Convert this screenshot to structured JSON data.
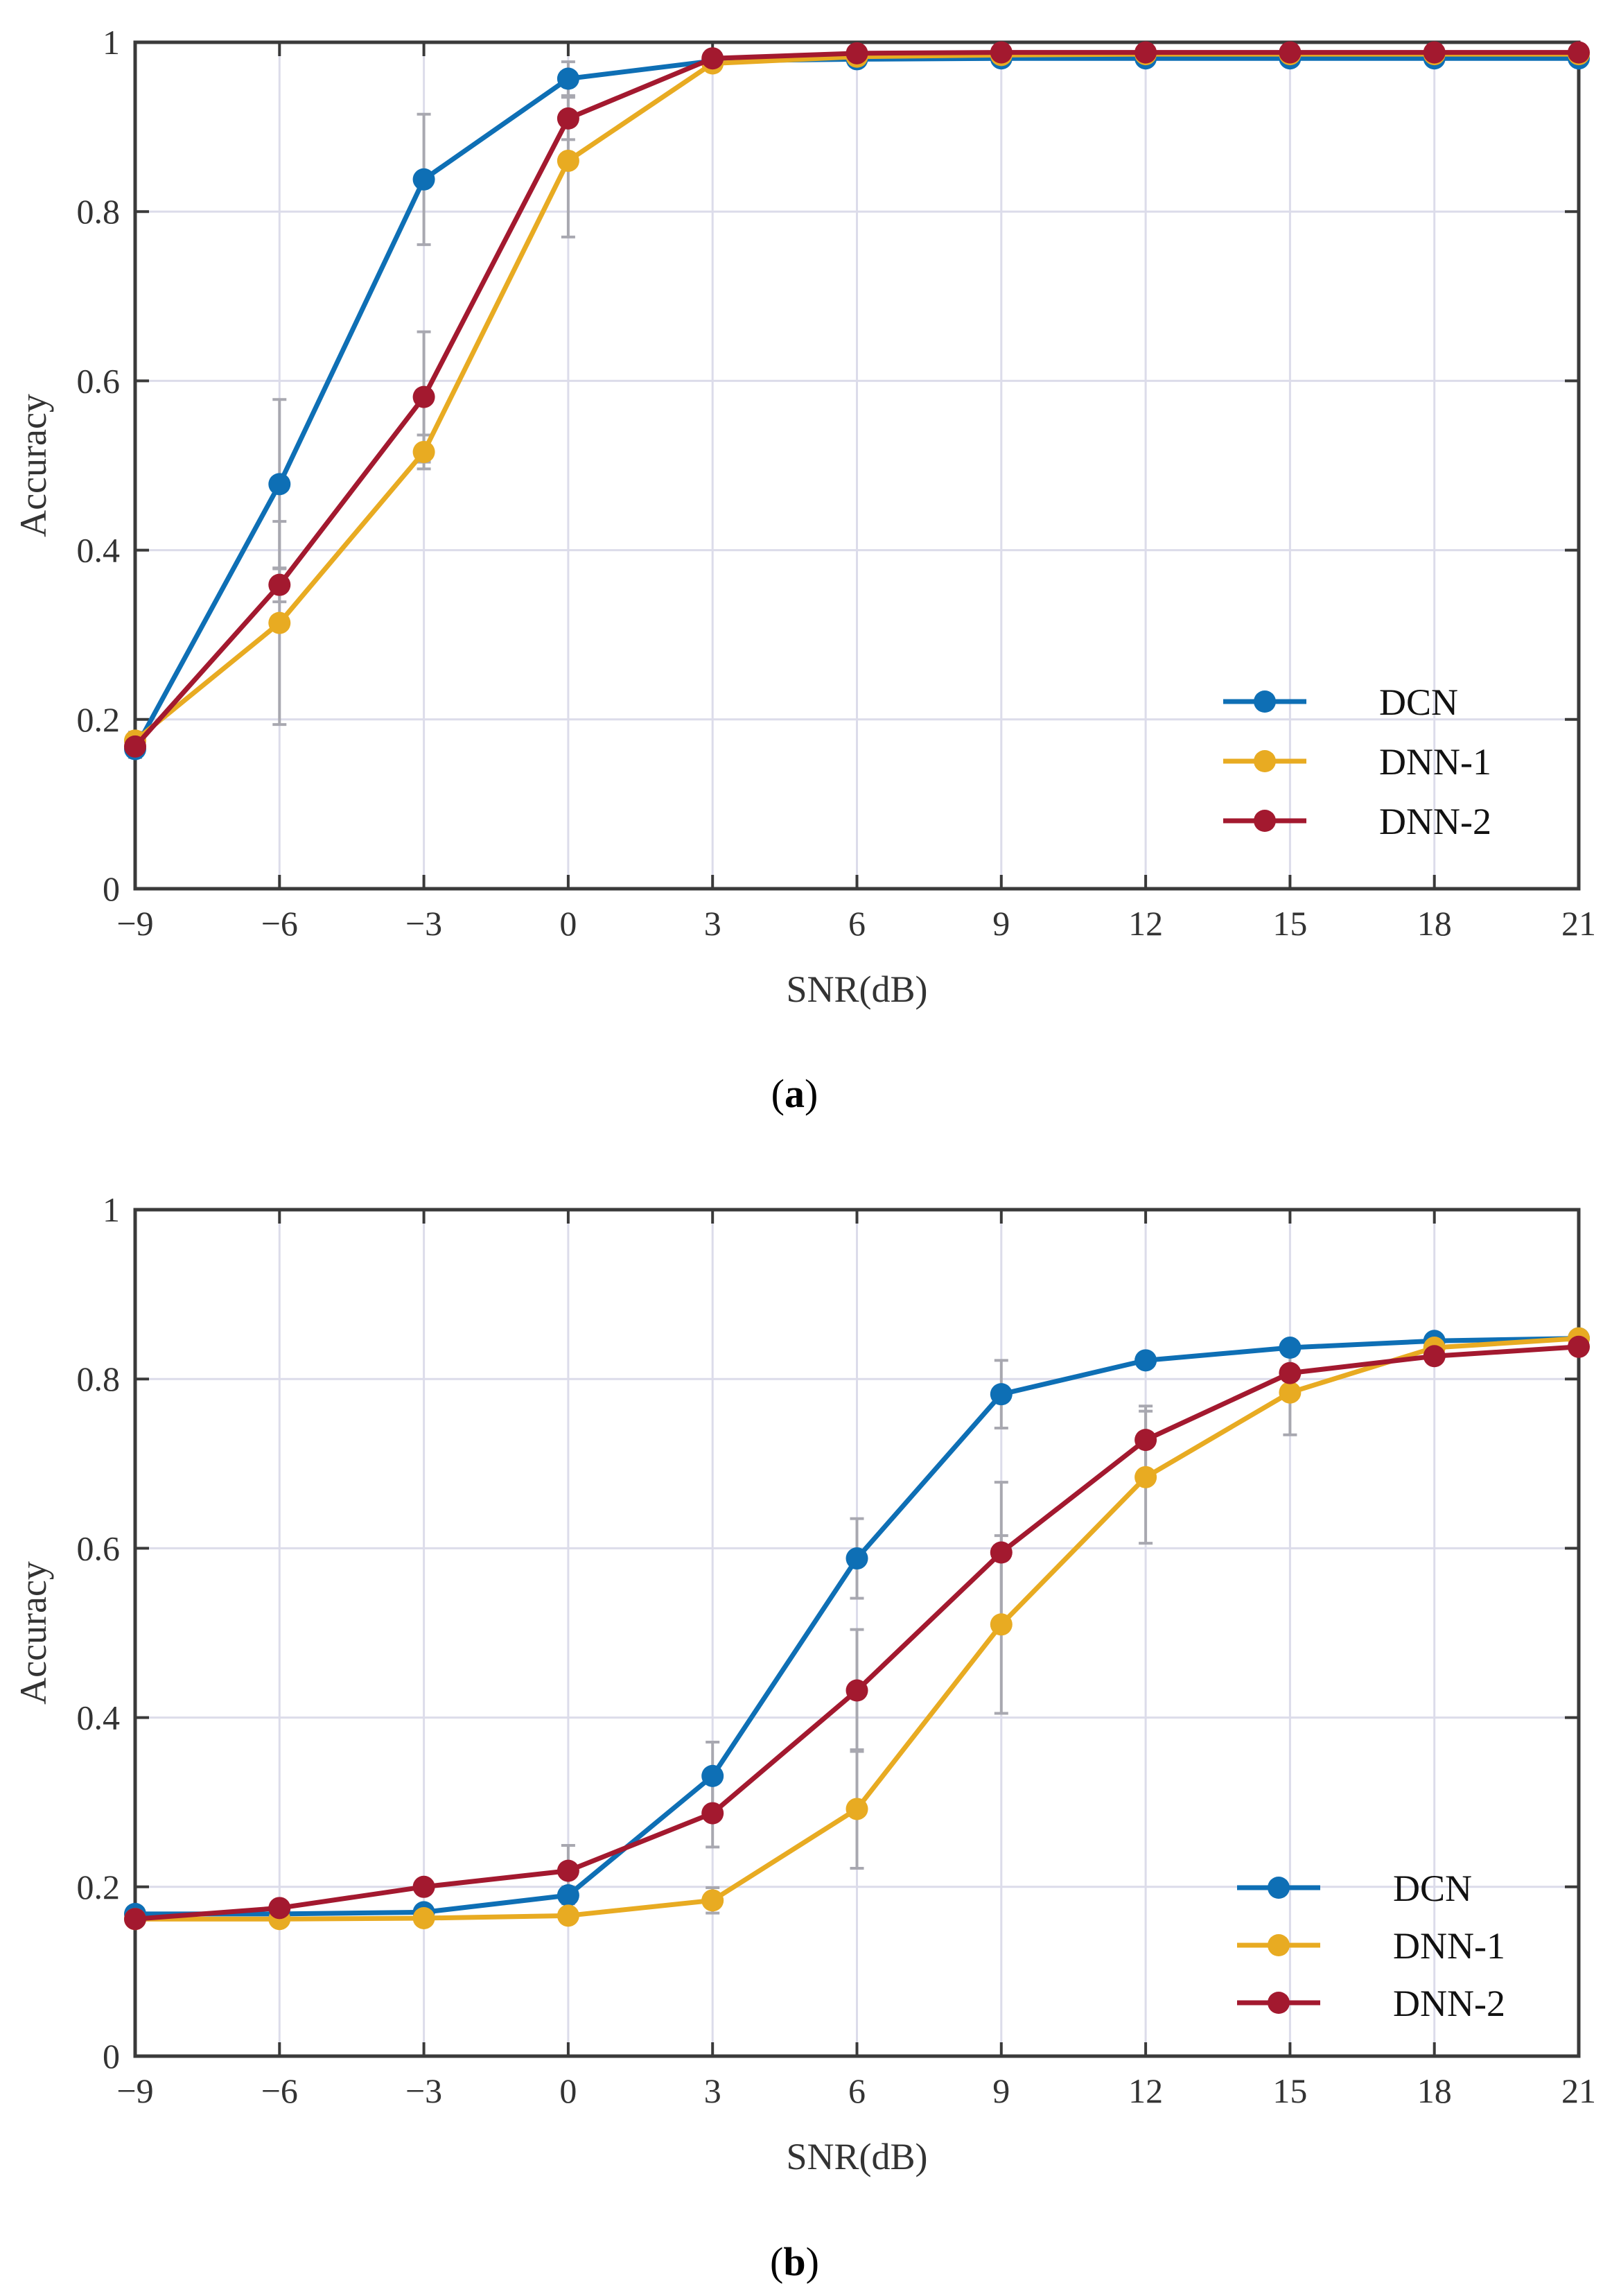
{
  "chart_data": [
    {
      "type": "line",
      "caption_letter": "a",
      "xlabel": "SNR(dB)",
      "ylabel": "Accuracy",
      "x": [
        -9,
        -6,
        -3,
        0,
        3,
        6,
        9,
        12,
        15,
        18,
        21
      ],
      "xlim": [
        -9,
        21
      ],
      "ylim": [
        0,
        1
      ],
      "xticks": [
        "−9",
        "−6",
        "−3",
        "0",
        "3",
        "6",
        "9",
        "12",
        "15",
        "18",
        "21"
      ],
      "yticks": [
        "0",
        "0.2",
        "0.4",
        "0.6",
        "0.8",
        "1"
      ],
      "grid": true,
      "legend_position": "bottom-right",
      "series": [
        {
          "name": "DCN",
          "color": "#0e6fb5",
          "values": [
            0.165,
            0.478,
            0.838,
            0.957,
            0.978,
            0.98,
            0.981,
            0.981,
            0.981,
            0.981,
            0.981
          ],
          "errors": [
            0.01,
            0.1,
            0.077,
            0.02,
            0.005,
            0.003,
            0.002,
            0.002,
            0.002,
            0.002,
            0.002
          ]
        },
        {
          "name": "DNN-1",
          "color": "#e8ab22",
          "values": [
            0.175,
            0.314,
            0.516,
            0.86,
            0.975,
            0.983,
            0.985,
            0.986,
            0.986,
            0.986,
            0.986
          ],
          "errors": [
            0.01,
            0.12,
            0.02,
            0.09,
            0.005,
            0.003,
            0.002,
            0.002,
            0.002,
            0.002,
            0.002
          ]
        },
        {
          "name": "DNN-2",
          "color": "#a3192f",
          "values": [
            0.168,
            0.359,
            0.581,
            0.91,
            0.981,
            0.987,
            0.988,
            0.988,
            0.988,
            0.988,
            0.988
          ],
          "errors": [
            0.01,
            0.02,
            0.077,
            0.025,
            0.005,
            0.003,
            0.002,
            0.002,
            0.002,
            0.002,
            0.002
          ]
        }
      ]
    },
    {
      "type": "line",
      "caption_letter": "b",
      "xlabel": "SNR(dB)",
      "ylabel": "Accuracy",
      "x": [
        -9,
        -6,
        -3,
        0,
        3,
        6,
        9,
        12,
        15,
        18,
        21
      ],
      "xlim": [
        -9,
        21
      ],
      "ylim": [
        0,
        1
      ],
      "xticks": [
        "−9",
        "−6",
        "−3",
        "0",
        "3",
        "6",
        "9",
        "12",
        "15",
        "18",
        "21"
      ],
      "yticks": [
        "0",
        "0.2",
        "0.4",
        "0.6",
        "0.8",
        "1"
      ],
      "grid": true,
      "legend_position": "bottom-right",
      "series": [
        {
          "name": "DCN",
          "color": "#0e6fb5",
          "values": [
            0.168,
            0.168,
            0.17,
            0.19,
            0.331,
            0.588,
            0.782,
            0.822,
            0.837,
            0.845,
            0.848
          ],
          "errors": [
            0.005,
            0.005,
            0.005,
            0.01,
            0.04,
            0.047,
            0.04,
            0.005,
            0.005,
            0.005,
            0.005
          ]
        },
        {
          "name": "DNN-1",
          "color": "#e8ab22",
          "values": [
            0.162,
            0.162,
            0.163,
            0.166,
            0.184,
            0.292,
            0.51,
            0.684,
            0.784,
            0.837,
            0.848
          ],
          "errors": [
            0.005,
            0.005,
            0.005,
            0.005,
            0.015,
            0.07,
            0.105,
            0.078,
            0.05,
            0.005,
            0.005
          ]
        },
        {
          "name": "DNN-2",
          "color": "#a3192f",
          "values": [
            0.162,
            0.175,
            0.2,
            0.219,
            0.287,
            0.432,
            0.595,
            0.728,
            0.807,
            0.827,
            0.838
          ],
          "errors": [
            0.005,
            0.005,
            0.005,
            0.03,
            0.04,
            0.072,
            0.083,
            0.04,
            0.005,
            0.005,
            0.005
          ]
        }
      ]
    }
  ]
}
